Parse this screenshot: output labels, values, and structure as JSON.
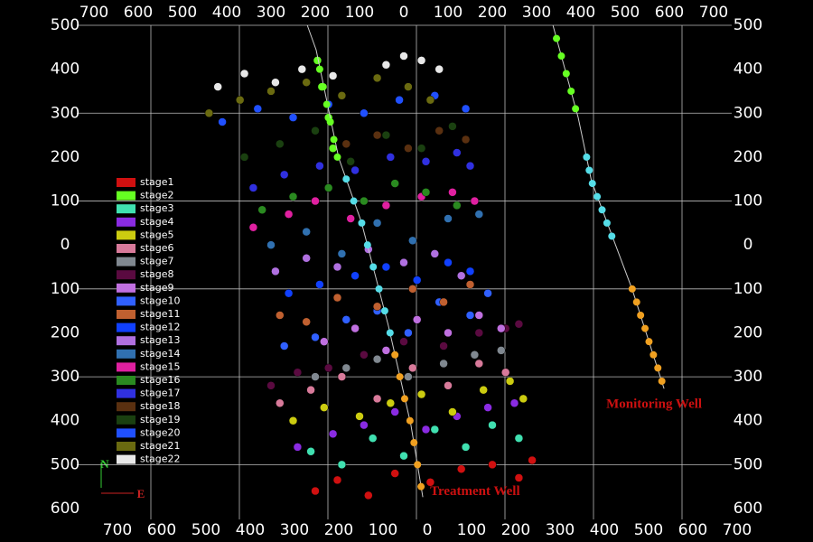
{
  "chart_data": {
    "type": "scatter",
    "xlim": [
      -700,
      700
    ],
    "ylim": [
      -600,
      500
    ],
    "xticks": [
      {
        "value": -700,
        "label": "700"
      },
      {
        "value": -600,
        "label": "600"
      },
      {
        "value": -500,
        "label": "500"
      },
      {
        "value": -400,
        "label": "400"
      },
      {
        "value": -300,
        "label": "300"
      },
      {
        "value": -200,
        "label": "200"
      },
      {
        "value": -100,
        "label": "100"
      },
      0,
      100,
      200,
      300,
      400,
      500,
      600,
      700
    ],
    "yticks": [
      500,
      400,
      300,
      200,
      100,
      0,
      {
        "value": -100,
        "label": "100"
      },
      {
        "value": -200,
        "label": "200"
      },
      {
        "value": -300,
        "label": "300"
      },
      {
        "value": -400,
        "label": "400"
      },
      {
        "value": -500,
        "label": "500"
      },
      {
        "value": -600,
        "label": "600"
      }
    ],
    "grid": true,
    "legend": "left",
    "series": [
      {
        "name": "stage1",
        "color": "#d01010",
        "x": [
          -200,
          -150,
          -80,
          -20,
          60,
          130,
          200,
          260,
          290
        ],
        "values": [
          -560,
          -535,
          -570,
          -520,
          -540,
          -510,
          -500,
          -530,
          -490
        ]
      },
      {
        "name": "stage2",
        "color": "#66ff22",
        "x": [
          -195,
          -185,
          -170,
          -160
        ],
        "values": [
          420,
          360,
          290,
          220
        ]
      },
      {
        "name": "stage3",
        "color": "#40e0b0",
        "x": [
          -210,
          -140,
          -70,
          0,
          70,
          140,
          200,
          260
        ],
        "values": [
          -470,
          -500,
          -440,
          -480,
          -420,
          -460,
          -410,
          -440
        ]
      },
      {
        "name": "stage4",
        "color": "#8a2be2",
        "x": [
          -240,
          -160,
          -90,
          -20,
          50,
          120,
          190,
          250
        ],
        "values": [
          -460,
          -430,
          -410,
          -380,
          -420,
          -390,
          -370,
          -360
        ]
      },
      {
        "name": "stage5",
        "color": "#cccc10",
        "x": [
          -250,
          -180,
          -100,
          -30,
          40,
          110,
          180,
          240,
          270
        ],
        "values": [
          -400,
          -370,
          -390,
          -360,
          -340,
          -380,
          -330,
          -310,
          -350
        ]
      },
      {
        "name": "stage6",
        "color": "#d87a9a",
        "x": [
          -280,
          -210,
          -140,
          -60,
          20,
          100,
          170,
          230
        ],
        "values": [
          -360,
          -330,
          -300,
          -350,
          -280,
          -320,
          -270,
          -290
        ]
      },
      {
        "name": "stage7",
        "color": "#808890",
        "x": [
          -200,
          -130,
          -60,
          10,
          90,
          160,
          220
        ],
        "values": [
          -300,
          -280,
          -260,
          -300,
          -270,
          -250,
          -240
        ]
      },
      {
        "name": "stage8",
        "color": "#5a0a40",
        "x": [
          -300,
          -240,
          -170,
          -90,
          0,
          90,
          170,
          230,
          260
        ],
        "values": [
          -320,
          -290,
          -280,
          -250,
          -220,
          -230,
          -200,
          -190,
          -180
        ]
      },
      {
        "name": "stage9",
        "color": "#c070e0",
        "x": [
          -180,
          -110,
          -40,
          30,
          100,
          170,
          220
        ],
        "values": [
          -220,
          -190,
          -240,
          -170,
          -200,
          -160,
          -190
        ]
      },
      {
        "name": "stage10",
        "color": "#3060ff",
        "x": [
          -270,
          -200,
          -130,
          -60,
          10,
          80,
          150,
          190
        ],
        "values": [
          -230,
          -210,
          -170,
          -150,
          -200,
          -130,
          -160,
          -110
        ]
      },
      {
        "name": "stage11",
        "color": "#c06030",
        "x": [
          -280,
          -220,
          -150,
          -60,
          20,
          90,
          150
        ],
        "values": [
          -160,
          -175,
          -120,
          -140,
          -100,
          -130,
          -90
        ]
      },
      {
        "name": "stage12",
        "color": "#1040ff",
        "x": [
          -260,
          -190,
          -110,
          -40,
          30,
          100,
          150
        ],
        "values": [
          -110,
          -90,
          -70,
          -50,
          -80,
          -40,
          -60
        ]
      },
      {
        "name": "stage13",
        "color": "#b070e0",
        "x": [
          -290,
          -220,
          -150,
          -80,
          0,
          70,
          130
        ],
        "values": [
          -60,
          -30,
          -50,
          -10,
          -40,
          -20,
          -70
        ]
      },
      {
        "name": "stage14",
        "color": "#3070b0",
        "x": [
          -300,
          -220,
          -140,
          -60,
          20,
          100,
          170
        ],
        "values": [
          0,
          30,
          -20,
          50,
          10,
          60,
          70
        ]
      },
      {
        "name": "stage15",
        "color": "#e020a0",
        "x": [
          -340,
          -260,
          -200,
          -120,
          -40,
          40,
          110,
          160
        ],
        "values": [
          40,
          70,
          100,
          60,
          90,
          110,
          120,
          100
        ]
      },
      {
        "name": "stage16",
        "color": "#2a8a20",
        "x": [
          -320,
          -250,
          -170,
          -90,
          -20,
          50,
          120
        ],
        "values": [
          80,
          110,
          130,
          100,
          140,
          120,
          90
        ]
      },
      {
        "name": "stage17",
        "color": "#3030e0",
        "x": [
          -340,
          -270,
          -190,
          -110,
          -30,
          50,
          120,
          150
        ],
        "values": [
          130,
          160,
          180,
          170,
          200,
          190,
          210,
          180
        ]
      },
      {
        "name": "stage18",
        "color": "#5a3010",
        "x": [
          -130,
          -60,
          10,
          80,
          140
        ],
        "values": [
          230,
          250,
          220,
          260,
          240
        ]
      },
      {
        "name": "stage19",
        "color": "#1a4010",
        "x": [
          -360,
          -280,
          -200,
          -120,
          -40,
          40,
          110
        ],
        "values": [
          200,
          230,
          260,
          190,
          250,
          220,
          270
        ]
      },
      {
        "name": "stage20",
        "color": "#2050ff",
        "x": [
          -410,
          -330,
          -250,
          -170,
          -90,
          -10,
          70,
          140
        ],
        "values": [
          280,
          310,
          290,
          320,
          300,
          330,
          340,
          310
        ]
      },
      {
        "name": "stage21",
        "color": "#6a6a10",
        "x": [
          -440,
          -370,
          -300,
          -220,
          -140,
          -60,
          10,
          60
        ],
        "values": [
          300,
          330,
          350,
          370,
          340,
          380,
          360,
          330
        ]
      },
      {
        "name": "stage22",
        "color": "#e8e8e8",
        "x": [
          -420,
          -360,
          -290,
          -230,
          -160,
          -40,
          0,
          40,
          80
        ],
        "values": [
          360,
          390,
          370,
          400,
          385,
          410,
          430,
          420,
          400
        ]
      }
    ],
    "wells": [
      {
        "name": "Treatment Well",
        "color": "#cc1010",
        "x": [
          -218,
          -198,
          -147,
          -96,
          -35,
          16,
          43
        ],
        "values": [
          500,
          444,
          198,
          53,
          -183,
          -409,
          -574
        ],
        "marker_x": [
          -190,
          -182,
          -174,
          -166,
          -158,
          -150,
          -130,
          -113,
          -95,
          -82,
          -69,
          -56,
          -43,
          -31,
          -20,
          -9,
          2,
          14,
          23,
          31,
          39
        ],
        "marker_y": [
          400,
          360,
          320,
          280,
          240,
          200,
          150,
          100,
          50,
          0,
          -50,
          -100,
          -150,
          -200,
          -250,
          -300,
          -350,
          -400,
          -450,
          -500,
          -550
        ],
        "marker_colors": [
          "#66ff22",
          "#66ff22",
          "#66ff22",
          "#66ff22",
          "#66ff22",
          "#66ff22",
          "#55dde8",
          "#55dde8",
          "#55dde8",
          "#55dde8",
          "#55dde8",
          "#55dde8",
          "#55dde8",
          "#55dde8",
          "#f0a020",
          "#f0a020",
          "#f0a020",
          "#f0a020",
          "#f0a020",
          "#f0a020",
          "#f0a020"
        ]
      },
      {
        "name": "Monitoring Well",
        "color": "#cc1010",
        "x": [
          337,
          394,
          424,
          516,
          588
        ],
        "values": [
          500,
          290,
          146,
          -101,
          -327
        ],
        "marker_x": [
          345,
          356,
          367,
          378,
          388,
          413,
          419,
          426,
          437,
          448,
          459,
          470,
          516,
          526,
          535,
          545,
          554,
          564,
          574,
          583
        ],
        "marker_y": [
          470,
          430,
          390,
          350,
          310,
          200,
          170,
          140,
          110,
          80,
          50,
          20,
          -100,
          -130,
          -160,
          -190,
          -220,
          -250,
          -280,
          -310
        ],
        "marker_colors": [
          "#66ff22",
          "#66ff22",
          "#66ff22",
          "#66ff22",
          "#66ff22",
          "#55dde8",
          "#55dde8",
          "#55dde8",
          "#55dde8",
          "#55dde8",
          "#55dde8",
          "#55dde8",
          "#f0a020",
          "#f0a020",
          "#f0a020",
          "#f0a020",
          "#f0a020",
          "#f0a020",
          "#f0a020",
          "#f0a020"
        ]
      }
    ],
    "compass": {
      "north": "N",
      "east": "E"
    }
  }
}
